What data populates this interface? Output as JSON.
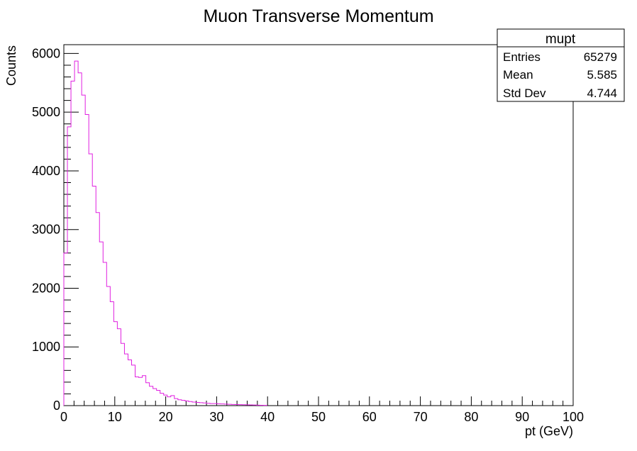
{
  "chart_data": {
    "type": "bar",
    "title": "Muon Transverse Momentum",
    "xlabel": "pt (GeV)",
    "ylabel": "Counts",
    "xlim": [
      0,
      100
    ],
    "ylim": [
      0,
      6150
    ],
    "x_ticks": [
      "0",
      "10",
      "20",
      "30",
      "40",
      "50",
      "60",
      "70",
      "80",
      "90",
      "100"
    ],
    "y_ticks": [
      "0",
      "1000",
      "2000",
      "3000",
      "4000",
      "5000",
      "6000"
    ],
    "grid": false,
    "series": [
      {
        "name": "mupt",
        "color": "#e020e0",
        "bin_width": 0.7,
        "x": [
          0,
          0.7,
          1.4,
          2.1,
          2.8,
          3.5,
          4.2,
          4.9,
          5.6,
          6.3,
          7,
          7.7,
          8.4,
          9.1,
          9.8,
          10.5,
          11.2,
          11.9,
          12.6,
          13.3,
          14,
          14.7,
          15.4,
          16.1,
          16.8,
          17.5,
          18.2,
          18.9,
          19.6,
          20.3,
          21,
          21.7,
          22.4,
          23.1,
          23.8,
          24.5,
          25.2,
          25.9,
          26.6,
          27.3,
          28,
          28.7,
          29.4,
          30.1,
          30.8,
          31.5,
          32.2,
          32.9,
          33.6,
          34.3,
          35,
          35.7,
          36.4,
          37.1,
          37.8,
          38.5,
          39.2
        ],
        "values": [
          2600,
          4750,
          5530,
          5870,
          5670,
          5290,
          4960,
          4290,
          3740,
          3290,
          2790,
          2440,
          2030,
          1770,
          1430,
          1310,
          1060,
          880,
          780,
          690,
          490,
          480,
          510,
          390,
          330,
          290,
          260,
          210,
          180,
          150,
          170,
          120,
          100,
          90,
          80,
          70,
          60,
          55,
          50,
          45,
          40,
          35,
          35,
          30,
          28,
          25,
          22,
          20,
          18,
          16,
          15,
          14,
          12,
          10,
          8,
          6,
          4
        ]
      }
    ]
  },
  "stats_box": {
    "title": "mupt",
    "rows": [
      {
        "label": "Entries",
        "value": "65279"
      },
      {
        "label": "Mean",
        "value": "5.585"
      },
      {
        "label": "Std Dev",
        "value": "4.744"
      }
    ]
  }
}
